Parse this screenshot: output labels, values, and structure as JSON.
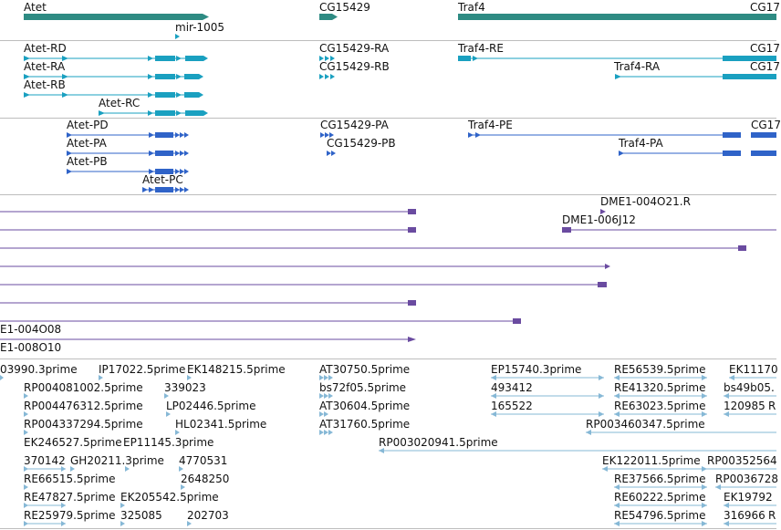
{
  "colors": {
    "gene": "#2e8b83",
    "mrna": "#1aa0c0",
    "protein": "#2f63c8",
    "alignment": "#6a4ba0",
    "est": "#86b8d6",
    "separator": "#bdbdbd"
  },
  "gene_track": {
    "labels": [
      "Atet",
      "mir-1005",
      "CG15429",
      "Traf4",
      "CG17"
    ]
  },
  "transcript_track": {
    "labels": [
      "Atet-RD",
      "Atet-RA",
      "Atet-RB",
      "Atet-RC",
      "CG15429-RA",
      "CG15429-RB",
      "Traf4-RE",
      "Traf4-RA",
      "CG17",
      "CG17"
    ]
  },
  "protein_track": {
    "labels": [
      "Atet-PD",
      "Atet-PA",
      "Atet-PB",
      "Atet-PC",
      "CG15429-PA",
      "CG15429-PB",
      "Traf4-PE",
      "Traf4-PA",
      "CG17"
    ]
  },
  "alignment_track": {
    "labels": [
      "DME1-004O21.R",
      "DME1-006J12",
      "E1-004O08",
      "E1-008O10"
    ]
  },
  "est_track": {
    "labels": [
      "03990.3prime",
      "IP17022.5prime",
      "EK148215.5prime",
      "AT30750.5prime",
      "EP15740.3prime",
      "RE56539.5prime",
      "EK11170",
      "RP004081002.5prime",
      "339023",
      "bs72f05.5prime",
      "493412",
      "RE41320.5prime",
      "bs49b05.",
      "RP004476312.5prime",
      "LP02446.5prime",
      "AT30604.5prime",
      "165522",
      "RE63023.5prime",
      "120985",
      "R",
      "RP004337294.5prime",
      "HL02341.5prime",
      "AT31760.5prime",
      "RP003460347.5prime",
      "RP003020941.5prime",
      "EK246527.5prime",
      "EP11145.3prime",
      "370142",
      "GH20211.3prime",
      "4770531",
      "EK122011.5prime",
      "RP00352564",
      "RE66515.5prime",
      "2648250",
      "RE37566.5prime",
      "RP0036728",
      "RE47827.5prime",
      "EK205542.5prime",
      "RE60222.5prime",
      "EK19792",
      "RE25979.5prime",
      "325085",
      "202703",
      "RE54796.5prime",
      "316966",
      "R"
    ]
  }
}
